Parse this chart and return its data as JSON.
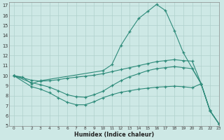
{
  "color": "#2e8b7a",
  "bg_color": "#cde8e5",
  "grid_color": "#b0d0cc",
  "xlabel": "Humidex (Indice chaleur)",
  "xlim": [
    -0.5,
    23
  ],
  "ylim": [
    5,
    17.3
  ],
  "yticks": [
    5,
    6,
    7,
    8,
    9,
    10,
    11,
    12,
    13,
    14,
    15,
    16,
    17
  ],
  "xticks": [
    0,
    1,
    2,
    3,
    4,
    5,
    6,
    7,
    8,
    9,
    10,
    11,
    12,
    13,
    14,
    15,
    16,
    17,
    18,
    19,
    20,
    21,
    22,
    23
  ],
  "curves": [
    {
      "x": [
        0,
        1,
        2,
        3,
        10,
        11,
        12,
        13,
        14,
        15,
        16,
        17,
        18,
        19,
        21,
        22,
        23
      ],
      "y": [
        10.0,
        9.85,
        9.2,
        9.5,
        10.5,
        11.1,
        13.0,
        14.4,
        15.7,
        16.4,
        17.1,
        16.5,
        14.5,
        12.3,
        9.2,
        6.5,
        5.2
      ]
    },
    {
      "x": [
        0,
        2,
        3,
        4,
        5,
        6,
        7,
        8,
        9,
        10,
        11,
        12,
        13,
        14,
        15,
        16,
        17,
        18,
        19,
        20,
        21,
        22,
        23
      ],
      "y": [
        10.0,
        9.55,
        9.45,
        9.5,
        9.6,
        9.75,
        9.85,
        9.95,
        10.05,
        10.2,
        10.4,
        10.6,
        10.8,
        11.0,
        11.2,
        11.4,
        11.5,
        11.6,
        11.5,
        11.45,
        9.2,
        6.5,
        5.2
      ]
    },
    {
      "x": [
        0,
        2,
        3,
        4,
        5,
        6,
        7,
        8,
        9,
        10,
        11,
        12,
        13,
        14,
        15,
        16,
        17,
        18,
        19,
        20,
        21,
        22,
        23
      ],
      "y": [
        10.0,
        9.3,
        9.1,
        8.85,
        8.5,
        8.1,
        7.9,
        7.85,
        8.1,
        8.45,
        9.0,
        9.5,
        9.9,
        10.2,
        10.5,
        10.7,
        10.8,
        10.9,
        10.8,
        10.7,
        9.2,
        6.5,
        5.2
      ]
    },
    {
      "x": [
        0,
        2,
        3,
        4,
        5,
        6,
        7,
        8,
        9,
        10,
        11,
        12,
        13,
        14,
        15,
        16,
        17,
        18,
        19,
        20,
        21,
        22,
        23
      ],
      "y": [
        10.0,
        8.9,
        8.65,
        8.3,
        7.8,
        7.35,
        7.1,
        7.1,
        7.4,
        7.8,
        8.1,
        8.35,
        8.5,
        8.65,
        8.75,
        8.85,
        8.9,
        8.95,
        8.9,
        8.8,
        9.2,
        6.5,
        5.2
      ]
    }
  ]
}
